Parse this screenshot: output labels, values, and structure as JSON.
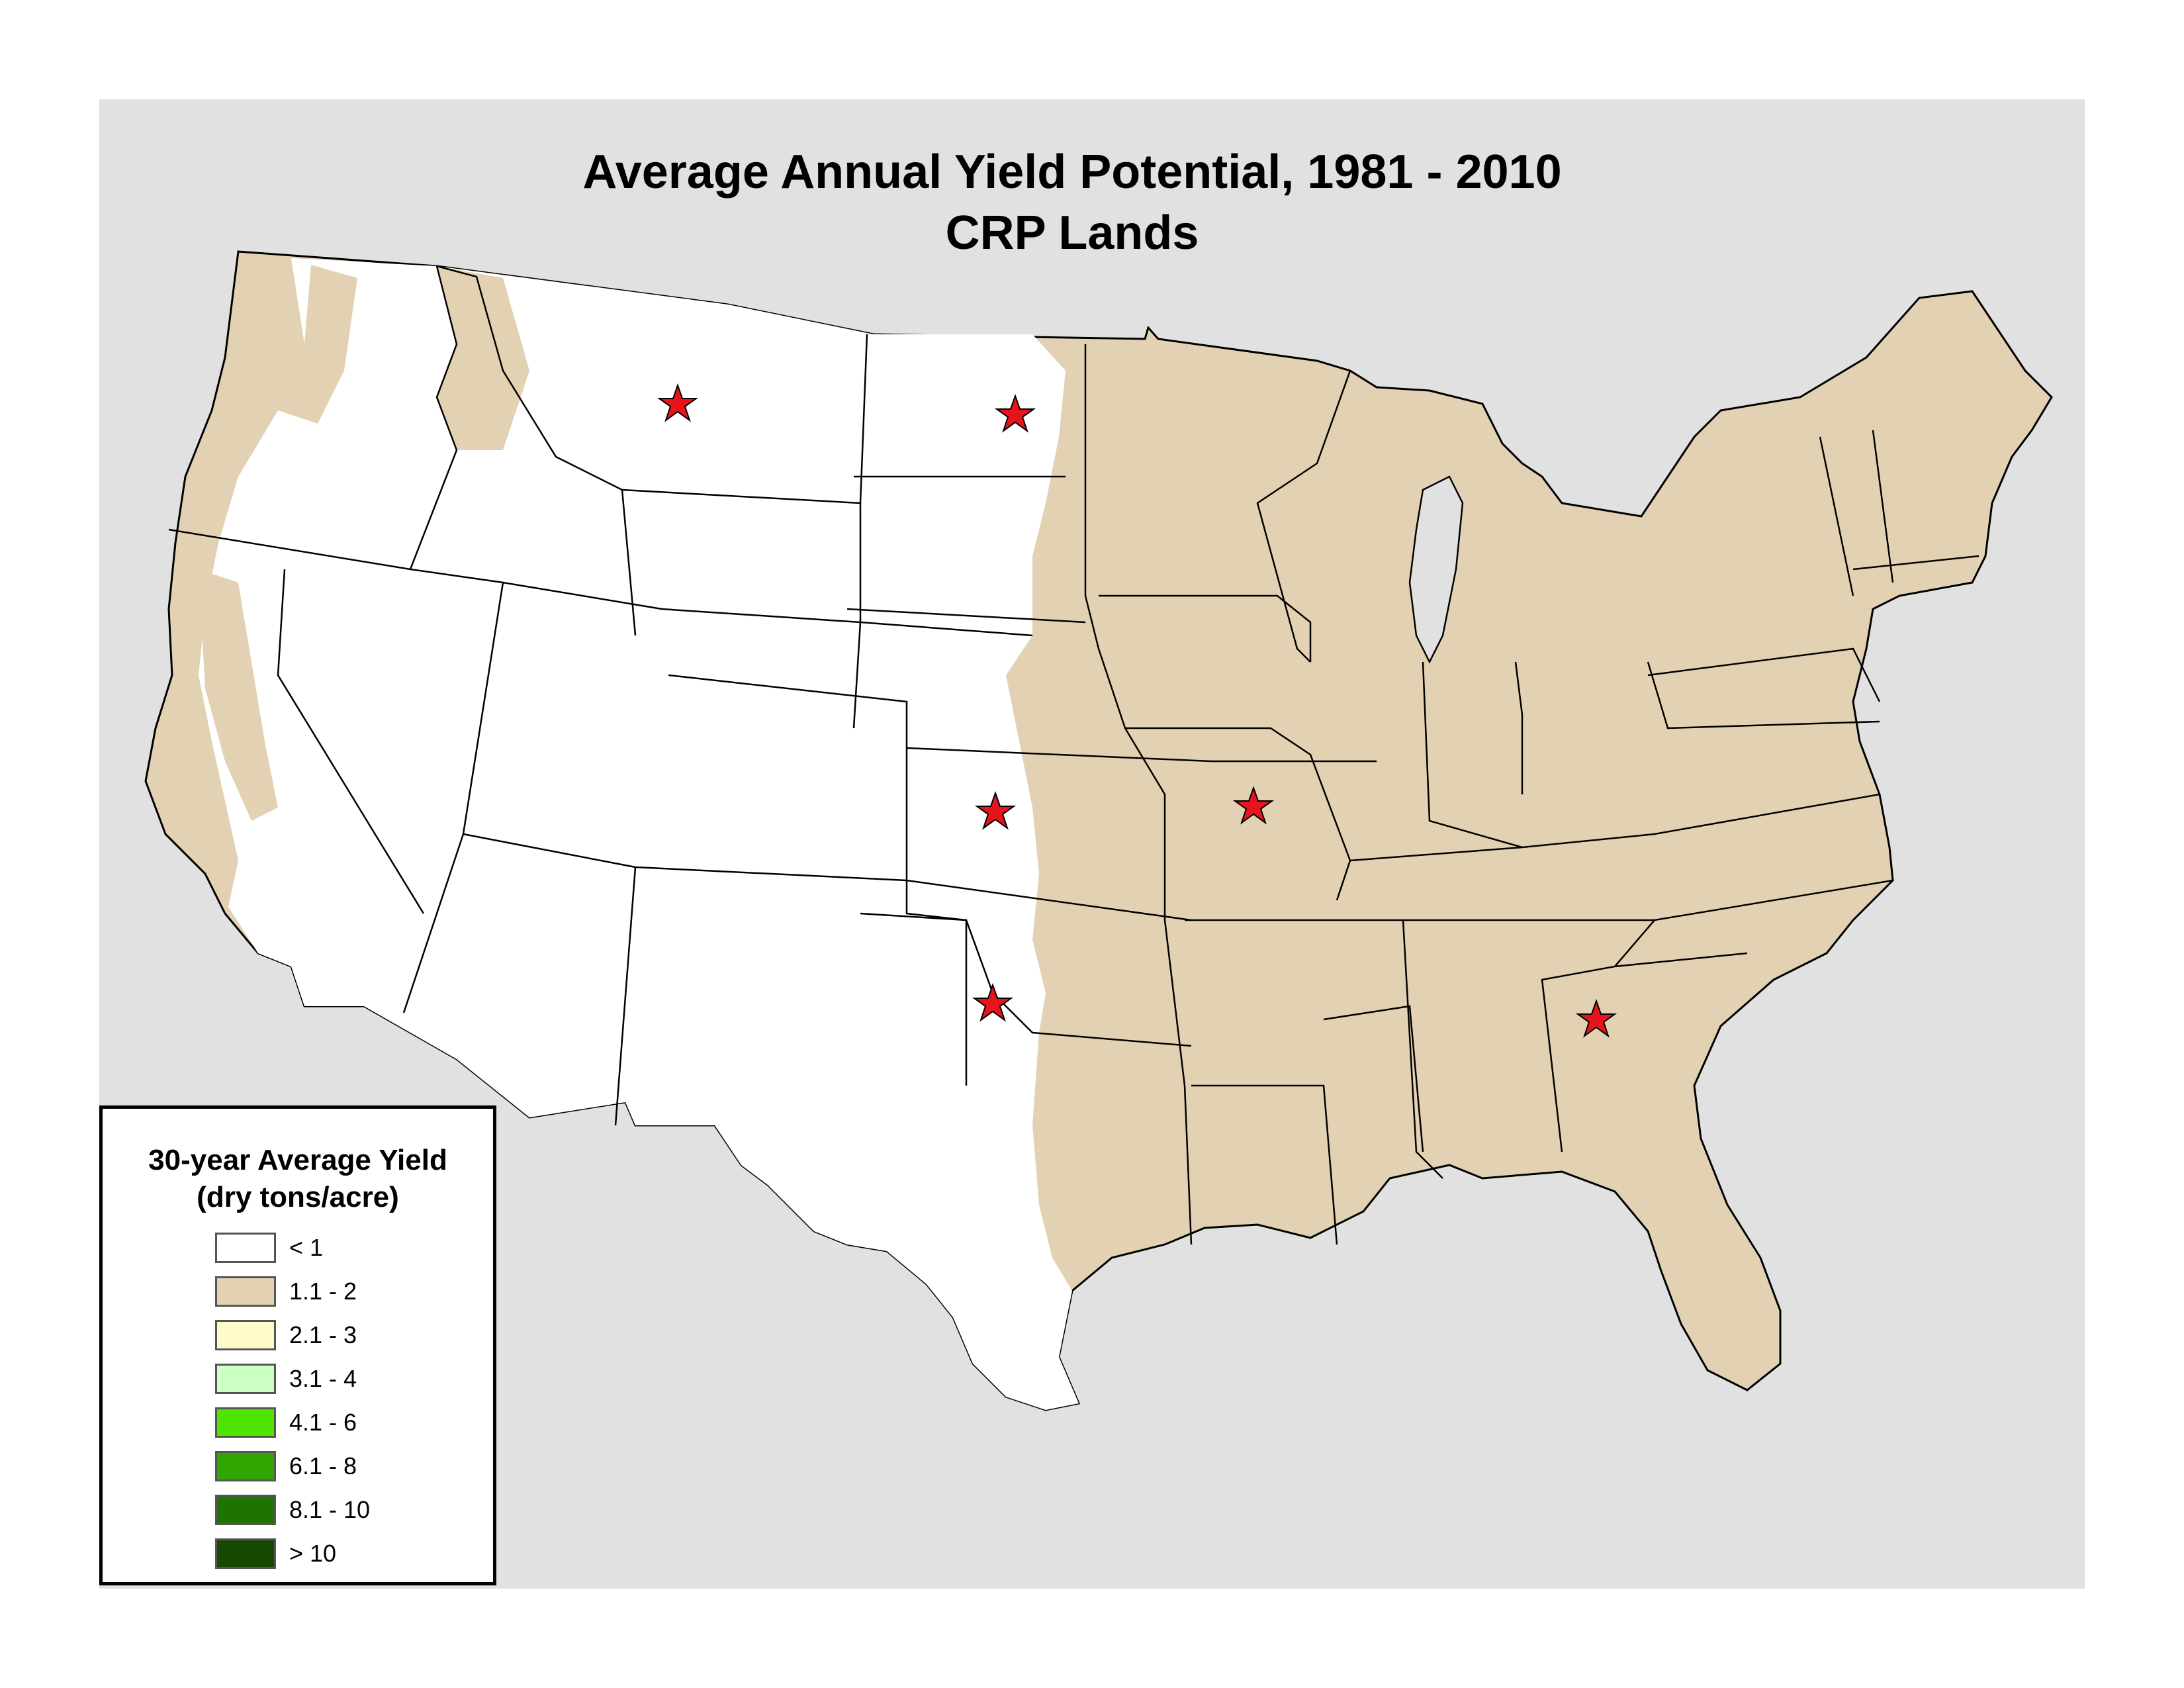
{
  "title": {
    "line1": "Average Annual Yield Potential, 1981 - 2010",
    "line2": "CRP Lands"
  },
  "colors": {
    "background": "#e1e1e1",
    "state_fill_low": "#ffffff",
    "state_fill_tan": "#e2d2b3",
    "state_border": "#000000",
    "star_fill": "#e8141b"
  },
  "legend": {
    "title_line1": "30-year Average Yield",
    "title_line2": "(dry tons/acre)",
    "items": [
      {
        "label": "< 1",
        "color": "#ffffff"
      },
      {
        "label": "1.1 - 2",
        "color": "#e2d2b3"
      },
      {
        "label": "2.1 - 3",
        "color": "#fffbc8"
      },
      {
        "label": "3.1 - 4",
        "color": "#ccffc2"
      },
      {
        "label": "4.1 - 6",
        "color": "#4ee600"
      },
      {
        "label": "6.1 - 8",
        "color": "#30a600"
      },
      {
        "label": "8.1 - 10",
        "color": "#1f7300"
      },
      {
        "label": "> 10",
        "color": "#154a00"
      }
    ]
  },
  "markers": {
    "type": "red-star",
    "count": 6
  }
}
